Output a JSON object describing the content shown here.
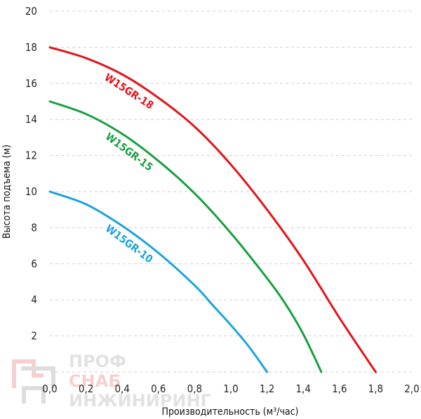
{
  "chart_data": {
    "type": "line",
    "title": "",
    "xlabel": "Производительность (м³/час)",
    "ylabel": "Высота подъема (м)",
    "xlim": [
      0,
      2.0
    ],
    "ylim": [
      0,
      20
    ],
    "x_ticks": [
      "0,0",
      "0,2",
      "0,4",
      "0,6",
      "0,8",
      "1,0",
      "1,2",
      "1,4",
      "1,6",
      "1,8",
      "2,0"
    ],
    "y_ticks": [
      "2",
      "4",
      "6",
      "8",
      "10",
      "12",
      "14",
      "16",
      "18",
      "20"
    ],
    "grid": "dashed horizontal",
    "series": [
      {
        "name": "W15GR-18",
        "color": "#e3141c",
        "x": [
          0,
          0.2,
          0.4,
          0.6,
          0.8,
          1.0,
          1.2,
          1.4,
          1.6,
          1.8
        ],
        "y": [
          18,
          17.4,
          16.5,
          15.2,
          13.6,
          11.5,
          9.0,
          6.2,
          3.0,
          0
        ]
      },
      {
        "name": "W15GR-15",
        "color": "#17a040",
        "x": [
          0,
          0.2,
          0.4,
          0.6,
          0.8,
          1.0,
          1.2,
          1.3,
          1.4,
          1.5
        ],
        "y": [
          15,
          14.3,
          13.2,
          11.7,
          9.9,
          7.7,
          5.2,
          3.8,
          2.1,
          0
        ]
      },
      {
        "name": "W15GR-10",
        "color": "#1aa3e0",
        "x": [
          0,
          0.2,
          0.4,
          0.6,
          0.8,
          0.9,
          1.0,
          1.1,
          1.2
        ],
        "y": [
          10,
          9.3,
          8.1,
          6.6,
          4.8,
          3.7,
          2.6,
          1.4,
          0
        ]
      }
    ]
  },
  "watermark": {
    "line1": "ПРОФ",
    "line2": "СНАБ",
    "line3": "ИНЖИНИРИНГ"
  }
}
